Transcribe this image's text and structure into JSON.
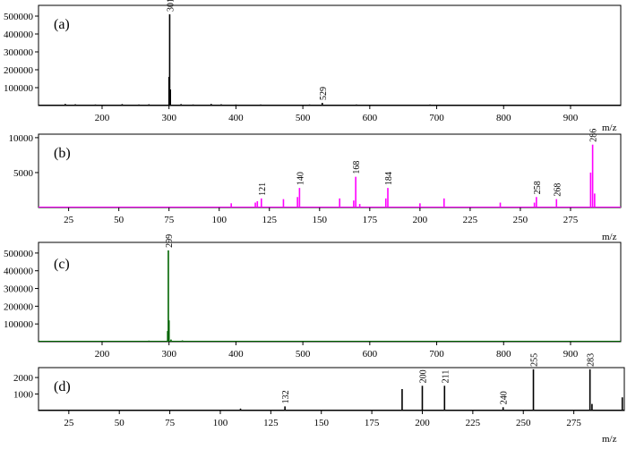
{
  "chart_data": [
    {
      "type": "bar",
      "panel_label": "(a)",
      "xlabel": "m/z",
      "color": "#000000",
      "xlim": [
        105,
        975
      ],
      "ylim": [
        0,
        560000
      ],
      "x_ticks": [
        200,
        300,
        400,
        500,
        600,
        700,
        800,
        900
      ],
      "y_ticks": [
        100000,
        200000,
        300000,
        400000,
        500000
      ],
      "peaks": [
        {
          "x": 301,
          "y": 510000,
          "label": "301"
        },
        {
          "x": 300,
          "y": 160000
        },
        {
          "x": 302,
          "y": 90000
        },
        {
          "x": 529,
          "y": 15000,
          "label": "529"
        },
        {
          "x": 145,
          "y": 9000
        },
        {
          "x": 160,
          "y": 7000
        },
        {
          "x": 190,
          "y": 6000
        },
        {
          "x": 230,
          "y": 8000
        },
        {
          "x": 255,
          "y": 6000
        },
        {
          "x": 270,
          "y": 7000
        },
        {
          "x": 318,
          "y": 8000
        },
        {
          "x": 336,
          "y": 6000
        },
        {
          "x": 363,
          "y": 9000
        },
        {
          "x": 378,
          "y": 7000
        },
        {
          "x": 400,
          "y": 6000
        },
        {
          "x": 437,
          "y": 6000
        },
        {
          "x": 470,
          "y": 5000
        },
        {
          "x": 510,
          "y": 6000
        },
        {
          "x": 545,
          "y": 5000
        },
        {
          "x": 580,
          "y": 6000
        },
        {
          "x": 640,
          "y": 5000
        },
        {
          "x": 690,
          "y": 6000
        },
        {
          "x": 720,
          "y": 5000
        },
        {
          "x": 780,
          "y": 4000
        },
        {
          "x": 850,
          "y": 5000
        },
        {
          "x": 890,
          "y": 4000
        },
        {
          "x": 930,
          "y": 4000
        }
      ]
    },
    {
      "type": "bar",
      "panel_label": "(b)",
      "xlabel": "m/z",
      "color": "#ff00ff",
      "xlim": [
        10,
        300
      ],
      "ylim": [
        0,
        10500
      ],
      "x_ticks": [
        25,
        50,
        75,
        100,
        125,
        150,
        175,
        200,
        225,
        250,
        275
      ],
      "y_ticks": [
        5000,
        10000
      ],
      "peaks": [
        {
          "x": 286,
          "y": 9000,
          "label": "286"
        },
        {
          "x": 285,
          "y": 5000
        },
        {
          "x": 287,
          "y": 2000
        },
        {
          "x": 168,
          "y": 4400,
          "label": "168"
        },
        {
          "x": 140,
          "y": 2800,
          "label": "140"
        },
        {
          "x": 184,
          "y": 2800,
          "label": "184"
        },
        {
          "x": 121,
          "y": 1300,
          "label": "121"
        },
        {
          "x": 258,
          "y": 1500,
          "label": "258"
        },
        {
          "x": 268,
          "y": 1200,
          "label": "268"
        },
        {
          "x": 106,
          "y": 600
        },
        {
          "x": 118,
          "y": 700
        },
        {
          "x": 119,
          "y": 900
        },
        {
          "x": 132,
          "y": 1200
        },
        {
          "x": 139,
          "y": 1500
        },
        {
          "x": 160,
          "y": 1300
        },
        {
          "x": 167,
          "y": 1000
        },
        {
          "x": 170,
          "y": 500
        },
        {
          "x": 183,
          "y": 1300
        },
        {
          "x": 200,
          "y": 600
        },
        {
          "x": 212,
          "y": 1300
        },
        {
          "x": 240,
          "y": 700
        },
        {
          "x": 257,
          "y": 700
        }
      ]
    },
    {
      "type": "bar",
      "panel_label": "(c)",
      "xlabel": "",
      "color": "#006400",
      "xlim": [
        105,
        975
      ],
      "ylim": [
        0,
        560000
      ],
      "x_ticks": [
        200,
        300,
        400,
        500,
        600,
        700,
        800,
        900
      ],
      "y_ticks": [
        100000,
        200000,
        300000,
        400000,
        500000
      ],
      "peaks": [
        {
          "x": 299,
          "y": 515000,
          "label": "299"
        },
        {
          "x": 300,
          "y": 120000
        },
        {
          "x": 298,
          "y": 60000
        },
        {
          "x": 303,
          "y": 12000
        },
        {
          "x": 145,
          "y": 5000
        },
        {
          "x": 175,
          "y": 4000
        },
        {
          "x": 210,
          "y": 5000
        },
        {
          "x": 250,
          "y": 4000
        },
        {
          "x": 270,
          "y": 6000
        },
        {
          "x": 320,
          "y": 7000
        },
        {
          "x": 340,
          "y": 5000
        },
        {
          "x": 385,
          "y": 5000
        },
        {
          "x": 430,
          "y": 4000
        },
        {
          "x": 470,
          "y": 5000
        },
        {
          "x": 520,
          "y": 4000
        },
        {
          "x": 560,
          "y": 5000
        },
        {
          "x": 610,
          "y": 5000
        },
        {
          "x": 640,
          "y": 4000
        },
        {
          "x": 700,
          "y": 5000
        },
        {
          "x": 760,
          "y": 4000
        },
        {
          "x": 815,
          "y": 4000
        },
        {
          "x": 860,
          "y": 5000
        },
        {
          "x": 900,
          "y": 4000
        },
        {
          "x": 950,
          "y": 4000
        }
      ]
    },
    {
      "type": "bar",
      "panel_label": "(d)",
      "xlabel": "m/z",
      "color": "#000000",
      "xlim": [
        10,
        300
      ],
      "ylim": [
        0,
        2600
      ],
      "x_ticks": [
        25,
        50,
        75,
        100,
        125,
        150,
        175,
        200,
        225,
        250,
        275
      ],
      "y_ticks": [
        1000,
        2000
      ],
      "peaks": [
        {
          "x": 255,
          "y": 2500,
          "label": "255"
        },
        {
          "x": 283,
          "y": 2500,
          "label": "283"
        },
        {
          "x": 200,
          "y": 1500,
          "label": "200"
        },
        {
          "x": 211,
          "y": 1500,
          "label": "211"
        },
        {
          "x": 190,
          "y": 1300
        },
        {
          "x": 132,
          "y": 250,
          "label": "132"
        },
        {
          "x": 240,
          "y": 200,
          "label": "240"
        },
        {
          "x": 110,
          "y": 120
        },
        {
          "x": 284,
          "y": 400
        },
        {
          "x": 299,
          "y": 800
        }
      ]
    }
  ]
}
